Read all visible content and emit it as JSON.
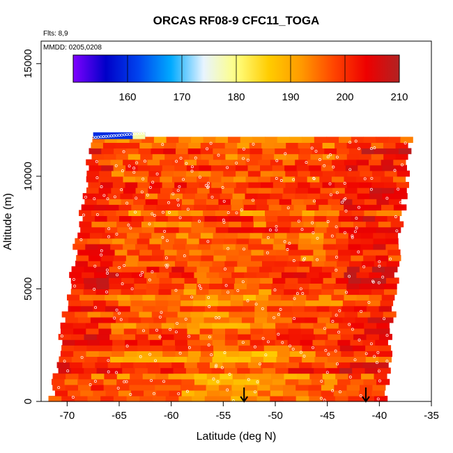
{
  "chart_data": {
    "type": "heatmap",
    "title": "ORCAS RF08-9 CFC11_TOGA",
    "annotations": {
      "flights": "Flts: 8,9",
      "dates": "MMDD: 0205,0208"
    },
    "xlabel": "Latitude (deg N)",
    "ylabel": "Altitude (m)",
    "xlim": [
      -72.5,
      -35
    ],
    "ylim": [
      0,
      16000
    ],
    "x_ticks": [
      -70,
      -65,
      -60,
      -55,
      -50,
      -45,
      -40,
      -35
    ],
    "x_tick_labels": [
      "-70",
      "-65",
      "-60",
      "-55",
      "-50",
      "-45",
      "-40",
      "-35"
    ],
    "y_ticks": [
      0,
      5000,
      10000,
      15000
    ],
    "y_tick_labels": [
      "0",
      "5000",
      "10000",
      "15000"
    ],
    "colorbar": {
      "range": [
        150,
        210
      ],
      "ticks": [
        160,
        170,
        180,
        190,
        200,
        210
      ],
      "tick_labels": [
        "160",
        "170",
        "180",
        "190",
        "200",
        "210"
      ],
      "colors": [
        "#7f00ff",
        "#0000c8",
        "#0044ee",
        "#00aaff",
        "#e8f4ff",
        "#ffff80",
        "#ffcc00",
        "#ff9900",
        "#ff4400",
        "#ee0000",
        "#b22222"
      ]
    },
    "field": {
      "domain_lat_bottom": [
        -71.5,
        -39.5
      ],
      "domain_lat_top": [
        -67.5,
        -37.0
      ],
      "top_altitude": 11700,
      "typical_value_range": [
        188,
        206
      ],
      "low_value_strip": {
        "lat": [
          -67.5,
          -62.5
        ],
        "alt": 11800,
        "value": 160
      }
    },
    "markers": [
      {
        "lat": -53,
        "symbol": "down-arrow"
      },
      {
        "lat": -41.3,
        "symbol": "down-arrow"
      }
    ]
  }
}
